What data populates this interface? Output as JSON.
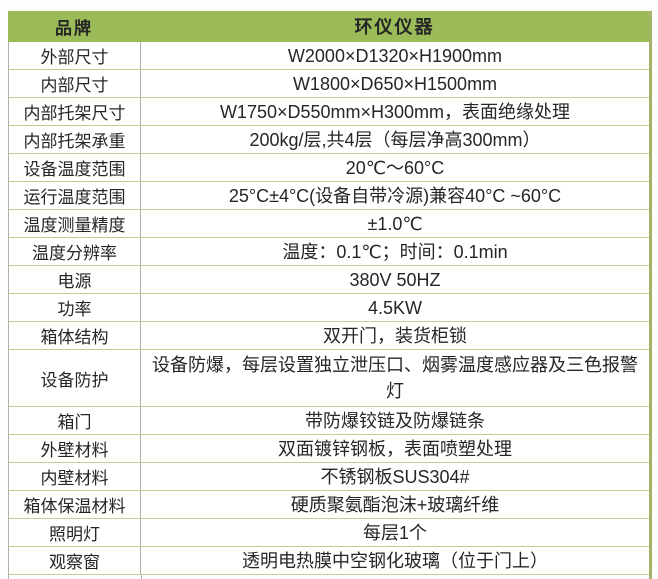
{
  "table": {
    "header": {
      "brand_label": "品牌",
      "brand_value": "环仪仪器"
    },
    "rows": [
      {
        "label": "外部尺寸",
        "value": "W2000×D1320×H1900mm"
      },
      {
        "label": "内部尺寸",
        "value": "W1800×D650×H1500mm"
      },
      {
        "label": "内部托架尺寸",
        "value": "W1750×D550mm×H300mm，表面绝缘处理"
      },
      {
        "label": "内部托架承重",
        "value": "200kg/层,共4层（每层净高300mm）"
      },
      {
        "label": "设备温度范围",
        "value": "20℃～60°C"
      },
      {
        "label": "运行温度范围",
        "value": "25°C±4°C(设备自带冷源)兼容40°C ~60°C"
      },
      {
        "label": "温度测量精度",
        "value": "±1.0℃"
      },
      {
        "label": "温度分辨率",
        "value": "温度：0.1℃；时间：0.1min"
      },
      {
        "label": "电源",
        "value": "380V 50HZ"
      },
      {
        "label": "功率",
        "value": "4.5KW"
      },
      {
        "label": "箱体结构",
        "value": "双开门，装货柜锁"
      },
      {
        "label": "设备防护",
        "value": "设备防爆，每层设置独立泄压口、烟雾温度感应器及三色报警灯",
        "tall": true
      },
      {
        "label": "箱门",
        "value": "带防爆铰链及防爆链条"
      },
      {
        "label": "外壁材料",
        "value": "双面镀锌钢板，表面喷塑处理"
      },
      {
        "label": "内壁材料",
        "value": "不锈钢板SUS304#"
      },
      {
        "label": "箱体保温材料",
        "value": "硬质聚氨酯泡沫+玻璃纤维"
      },
      {
        "label": "照明灯",
        "value": "每层1个"
      },
      {
        "label": "观察窗",
        "value": "透明电热膜中空钢化玻璃（位于门上）"
      }
    ],
    "colors": {
      "header_bg": "#9bbb59",
      "header_text": "#ffffff",
      "grid_horizontal": "#c2cd99",
      "grid_vertical": "#b0b0b0",
      "border_right": "#a3b369",
      "text": "#262626"
    }
  }
}
